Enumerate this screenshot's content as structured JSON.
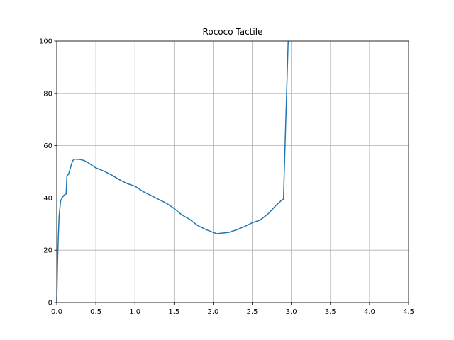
{
  "chart_data": {
    "type": "line",
    "title": "Rococo Tactile",
    "xlabel": "",
    "ylabel": "",
    "xlim": [
      0,
      4.5
    ],
    "ylim": [
      0,
      100
    ],
    "x_ticks": [
      "0.0",
      "0.5",
      "1.0",
      "1.5",
      "2.0",
      "2.5",
      "3.0",
      "3.5",
      "4.0",
      "4.5"
    ],
    "y_ticks": [
      "0",
      "20",
      "40",
      "60",
      "80",
      "100"
    ],
    "grid": true,
    "colors": {
      "line": "#1f77b4",
      "grid": "#b0b0b0",
      "axes": "#000000"
    },
    "series": [
      {
        "x": [
          0.0,
          0.01,
          0.02,
          0.03,
          0.05,
          0.07,
          0.09,
          0.12,
          0.13,
          0.15,
          0.17,
          0.2,
          0.22,
          0.25,
          0.3,
          0.35,
          0.4,
          0.45,
          0.5,
          0.6,
          0.7,
          0.8,
          0.9,
          1.0,
          1.1,
          1.2,
          1.3,
          1.4,
          1.5,
          1.6,
          1.7,
          1.8,
          1.9,
          2.0,
          2.05,
          2.1,
          2.2,
          2.3,
          2.4,
          2.5,
          2.6,
          2.7,
          2.8,
          2.88,
          2.9,
          2.93,
          2.96
        ],
        "y": [
          0,
          15,
          25,
          33,
          39,
          40,
          41,
          41.5,
          48.5,
          49,
          51,
          54,
          54.8,
          54.8,
          54.7,
          54.3,
          53.5,
          52.5,
          51.5,
          50.3,
          48.8,
          47.0,
          45.5,
          44.5,
          42.5,
          41.0,
          39.5,
          38.0,
          36.0,
          33.5,
          31.8,
          29.5,
          28.0,
          26.8,
          26.3,
          26.5,
          26.8,
          27.8,
          29.0,
          30.5,
          31.5,
          33.8,
          37.0,
          39.2,
          39.5,
          70,
          100
        ]
      }
    ]
  }
}
